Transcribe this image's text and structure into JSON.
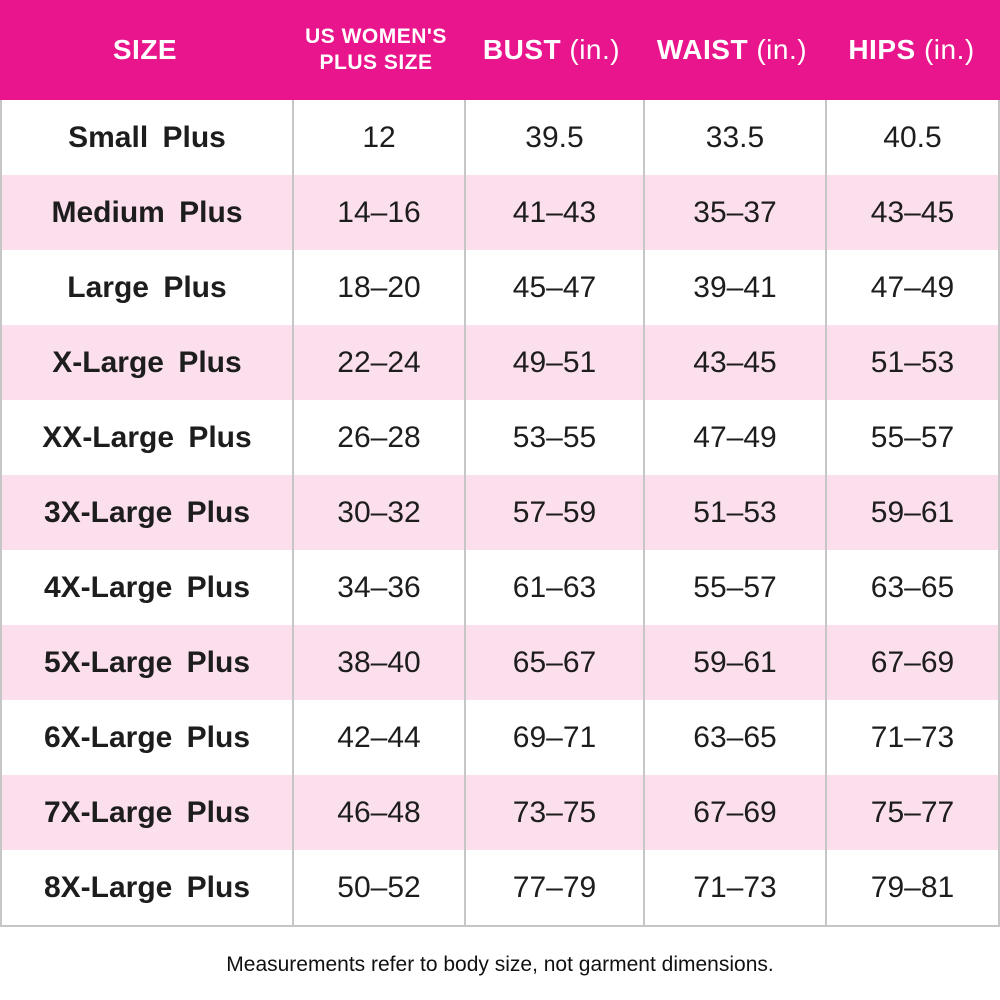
{
  "chart_data": {
    "type": "table",
    "columns": [
      "SIZE",
      "US WOMEN'S PLUS SIZE",
      "BUST (in.)",
      "WAIST (in.)",
      "HIPS (in.)"
    ],
    "rows": [
      [
        "Small Plus",
        "12",
        "39.5",
        "33.5",
        "40.5"
      ],
      [
        "Medium Plus",
        "14–16",
        "41–43",
        "35–37",
        "43–45"
      ],
      [
        "Large Plus",
        "18–20",
        "45–47",
        "39–41",
        "47–49"
      ],
      [
        "X-Large Plus",
        "22–24",
        "49–51",
        "43–45",
        "51–53"
      ],
      [
        "XX-Large Plus",
        "26–28",
        "53–55",
        "47–49",
        "55–57"
      ],
      [
        "3X-Large Plus",
        "30–32",
        "57–59",
        "51–53",
        "59–61"
      ],
      [
        "4X-Large Plus",
        "34–36",
        "61–63",
        "55–57",
        "63–65"
      ],
      [
        "5X-Large Plus",
        "38–40",
        "65–67",
        "59–61",
        "67–69"
      ],
      [
        "6X-Large Plus",
        "42–44",
        "69–71",
        "63–65",
        "71–73"
      ],
      [
        "7X-Large Plus",
        "46–48",
        "73–75",
        "67–69",
        "75–77"
      ],
      [
        "8X-Large Plus",
        "50–52",
        "77–79",
        "71–73",
        "79–81"
      ]
    ],
    "layout": {
      "row_stripes": [
        "#ffffff",
        "#fbdfec"
      ],
      "grid": "vertical-only"
    }
  },
  "header": {
    "size_label": "SIZE",
    "us_plus_line1": "US WOMEN'S",
    "us_plus_line2": "PLUS SIZE",
    "bust_label": "BUST",
    "waist_label": "WAIST",
    "hips_label": "HIPS",
    "unit": "(in.)"
  },
  "footer": {
    "note": "Measurements refer to body size, not garment dimensions."
  },
  "colors": {
    "header_bg": "#e9158c",
    "header_text": "#ffffff",
    "row_alt_bg": "#fbdfec",
    "border": "#c6c6c6",
    "text": "#1d1d1d"
  }
}
